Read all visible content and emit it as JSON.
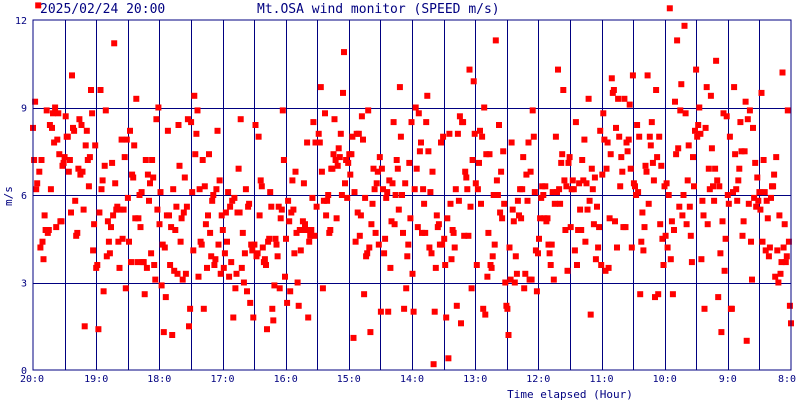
{
  "header": {
    "timestamp": "2025/02/24 20:00",
    "title": "Mt.OSA wind monitor (SPEED m/s)"
  },
  "chart_data": {
    "type": "scatter",
    "title": "Mt.OSA wind monitor (SPEED m/s)",
    "xlabel": "Time elapsed (Hour)",
    "ylabel": "m/s",
    "x_tick_labels": [
      "20:0",
      "19:0",
      "18:0",
      "17:0",
      "16:0",
      "15:0",
      "14:0",
      "13:0",
      "12:0",
      "11:0",
      "10:0",
      "9:0",
      "8:0"
    ],
    "y_tick_labels": [
      "0",
      "3",
      "6",
      "9",
      "12"
    ],
    "xlim": [
      0,
      12
    ],
    "ylim": [
      0,
      12
    ],
    "x_unit": "hours elapsed since 20:00",
    "grid": {
      "major_x_every": 1,
      "minor_x_every": 0.5,
      "major_y_every": 3
    },
    "colors": {
      "points": "#ff0000",
      "grid": "#000080",
      "text": "#000080",
      "background": "#ffffff"
    },
    "x": [],
    "y": []
  }
}
